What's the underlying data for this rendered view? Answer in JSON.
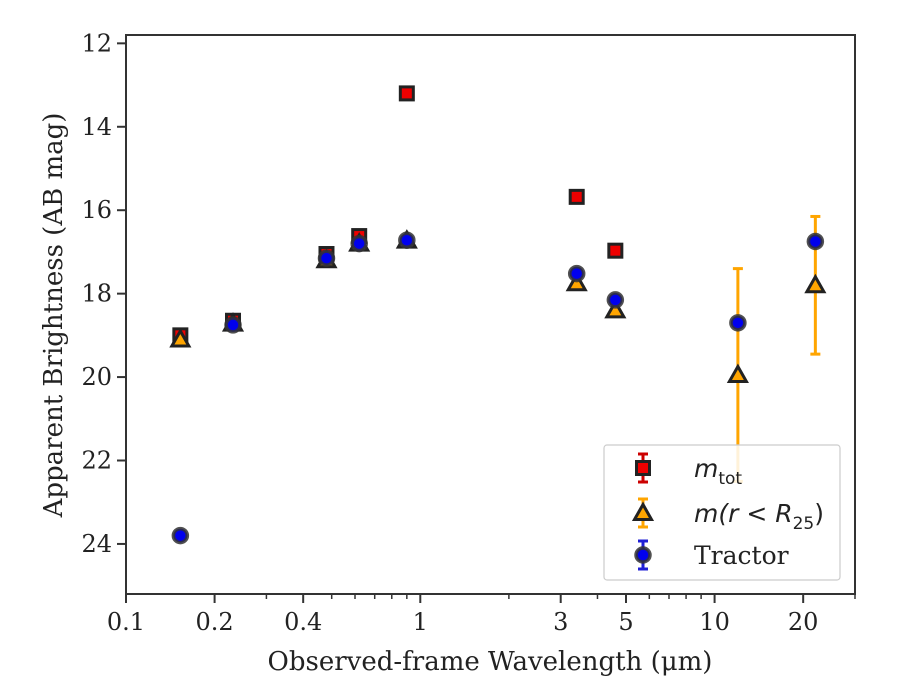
{
  "chart_data": {
    "type": "scatter",
    "xlabel": "Observed-frame Wavelength (μm)",
    "ylabel": "Apparent Brightness (AB mag)",
    "xscale": "log",
    "xlim": [
      0.1,
      30
    ],
    "ylim": [
      25.2,
      11.8
    ],
    "y_inverted": true,
    "xticks": [
      {
        "value": 0.1,
        "label": "0.1"
      },
      {
        "value": 0.2,
        "label": "0.2"
      },
      {
        "value": 0.4,
        "label": "0.4"
      },
      {
        "value": 1,
        "label": "1"
      },
      {
        "value": 3,
        "label": "3"
      },
      {
        "value": 5,
        "label": "5"
      },
      {
        "value": 10,
        "label": "10"
      },
      {
        "value": 20,
        "label": "20"
      }
    ],
    "yticks": [
      {
        "value": 12,
        "label": "12"
      },
      {
        "value": 14,
        "label": "14"
      },
      {
        "value": 16,
        "label": "16"
      },
      {
        "value": 18,
        "label": "18"
      },
      {
        "value": 20,
        "label": "20"
      },
      {
        "value": 22,
        "label": "22"
      },
      {
        "value": 24,
        "label": "24"
      }
    ],
    "grid": false,
    "legend_position": "lower-right",
    "legend": [
      {
        "text": "m",
        "sub": "tot",
        "marker": "square"
      },
      {
        "text": "m(r < R",
        "sub": "25",
        "tail": ")",
        "marker": "triangle"
      },
      {
        "text": "Tractor",
        "marker": "circle"
      }
    ],
    "series": [
      {
        "marker": "square",
        "face_color": "#ee0000",
        "edge_color": "#222222",
        "error_color": "#cc0000",
        "points": [
          {
            "x": 0.153,
            "y": 19.0,
            "err": 0.1
          },
          {
            "x": 0.231,
            "y": 18.65,
            "err": 0.1
          },
          {
            "x": 0.48,
            "y": 17.05,
            "err": 0.05
          },
          {
            "x": 0.62,
            "y": 16.62,
            "err": 0.05
          },
          {
            "x": 0.9,
            "y": 13.2,
            "err": 0.0
          },
          {
            "x": 3.4,
            "y": 15.68,
            "err": 0.0
          },
          {
            "x": 4.6,
            "y": 16.97,
            "err": 0.0
          }
        ]
      },
      {
        "marker": "triangle",
        "face_color": "#ffa500",
        "edge_color": "#222222",
        "error_color": "#ffa500",
        "points": [
          {
            "x": 0.153,
            "y": 19.1,
            "err": 0.0
          },
          {
            "x": 0.231,
            "y": 18.72,
            "err": 0.0
          },
          {
            "x": 0.48,
            "y": 17.2,
            "err": 0.0
          },
          {
            "x": 0.62,
            "y": 16.8,
            "err": 0.0
          },
          {
            "x": 0.9,
            "y": 16.73,
            "err": 0.0
          },
          {
            "x": 3.4,
            "y": 17.75,
            "err": 0.0
          },
          {
            "x": 4.6,
            "y": 18.4,
            "err": 0.0
          },
          {
            "x": 12.0,
            "y": 19.95,
            "err": 2.55
          },
          {
            "x": 22.0,
            "y": 17.8,
            "err": 1.65
          }
        ]
      },
      {
        "marker": "circle",
        "face_color": "#0000ee",
        "edge_color": "#333333",
        "error_color": "#1f1fd6",
        "points": [
          {
            "x": 0.153,
            "y": 23.8,
            "err": 0.0
          },
          {
            "x": 0.231,
            "y": 18.75,
            "err": 0.0
          },
          {
            "x": 0.48,
            "y": 17.15,
            "err": 0.0
          },
          {
            "x": 0.62,
            "y": 16.8,
            "err": 0.0
          },
          {
            "x": 0.9,
            "y": 16.72,
            "err": 0.0
          },
          {
            "x": 3.4,
            "y": 17.52,
            "err": 0.0
          },
          {
            "x": 4.6,
            "y": 18.15,
            "err": 0.0
          },
          {
            "x": 12.0,
            "y": 18.7,
            "err": 0.0
          },
          {
            "x": 22.0,
            "y": 16.75,
            "err": 0.0
          }
        ]
      }
    ]
  }
}
